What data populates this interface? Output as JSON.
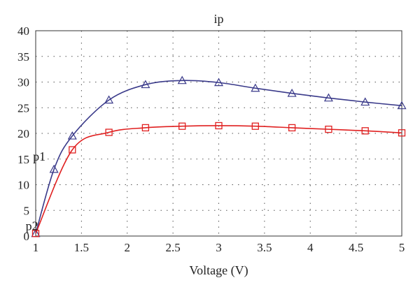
{
  "chart_data": {
    "type": "line",
    "title": "ip",
    "xlabel": "Voltage (V)",
    "ylabel": "",
    "xlim": [
      1,
      5
    ],
    "ylim": [
      0,
      40
    ],
    "xticks": [
      1,
      1.5,
      2,
      2.5,
      3,
      3.5,
      4,
      4.5,
      5
    ],
    "xtick_labels": [
      "1",
      "1.5",
      "2",
      "2.5",
      "3",
      "3.5",
      "4",
      "4.5",
      "5"
    ],
    "yticks": [
      0,
      5,
      10,
      15,
      20,
      25,
      30,
      35,
      40
    ],
    "ytick_labels": [
      "0",
      "5",
      "10",
      "15",
      "20",
      "25",
      "30",
      "35",
      "40"
    ],
    "grid": true,
    "series": [
      {
        "marker": "triangle",
        "color": "#3a3a8a",
        "x": [
          1.0,
          1.2,
          1.4,
          1.8,
          2.2,
          2.6,
          3.0,
          3.4,
          3.8,
          4.2,
          4.6,
          5.0
        ],
        "y": [
          0.5,
          13.0,
          19.5,
          26.5,
          29.5,
          30.3,
          29.9,
          28.8,
          27.8,
          26.9,
          26.1,
          25.4
        ]
      },
      {
        "marker": "square",
        "color": "#e02020",
        "x": [
          1.0,
          1.4,
          1.8,
          2.2,
          2.6,
          3.0,
          3.4,
          3.8,
          4.2,
          4.6,
          5.0
        ],
        "y": [
          0.5,
          16.8,
          20.2,
          21.1,
          21.4,
          21.5,
          21.4,
          21.1,
          20.8,
          20.5,
          20.1
        ]
      }
    ],
    "annotations": [
      {
        "text": "p1",
        "x": 1.1,
        "y": 15.5
      },
      {
        "text": "p2",
        "x": 1.02,
        "y": 2.0
      }
    ]
  }
}
